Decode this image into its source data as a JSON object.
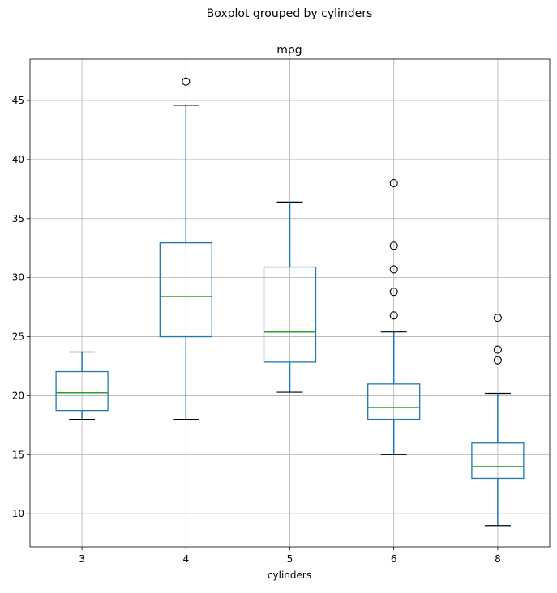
{
  "chart_data": {
    "type": "boxplot",
    "suptitle": "Boxplot grouped by cylinders",
    "title": "mpg",
    "xlabel": "cylinders",
    "ylabel": "",
    "ylim": [
      7.2,
      48.5
    ],
    "yticks": [
      10,
      15,
      20,
      25,
      30,
      35,
      40,
      45
    ],
    "grid": true,
    "box_color": "#1f77b4",
    "median_color": "#2ca02c",
    "categories": [
      "3",
      "4",
      "5",
      "6",
      "8"
    ],
    "boxes": [
      {
        "category": "3",
        "whisker_low": 18.0,
        "q1": 18.75,
        "median": 20.25,
        "q3": 22.05,
        "whisker_high": 23.7,
        "outliers": []
      },
      {
        "category": "4",
        "whisker_low": 18.0,
        "q1": 25.0,
        "median": 28.4,
        "q3": 32.95,
        "whisker_high": 44.6,
        "outliers": [
          46.6
        ]
      },
      {
        "category": "5",
        "whisker_low": 20.3,
        "q1": 22.85,
        "median": 25.4,
        "q3": 30.9,
        "whisker_high": 36.4,
        "outliers": []
      },
      {
        "category": "6",
        "whisker_low": 15.0,
        "q1": 18.0,
        "median": 19.0,
        "q3": 21.0,
        "whisker_high": 25.4,
        "outliers": [
          26.8,
          28.8,
          30.7,
          32.7,
          38.0
        ]
      },
      {
        "category": "8",
        "whisker_low": 9.0,
        "q1": 13.0,
        "median": 14.0,
        "q3": 16.0,
        "whisker_high": 20.2,
        "outliers": [
          23.0,
          23.9,
          26.6
        ]
      }
    ]
  }
}
